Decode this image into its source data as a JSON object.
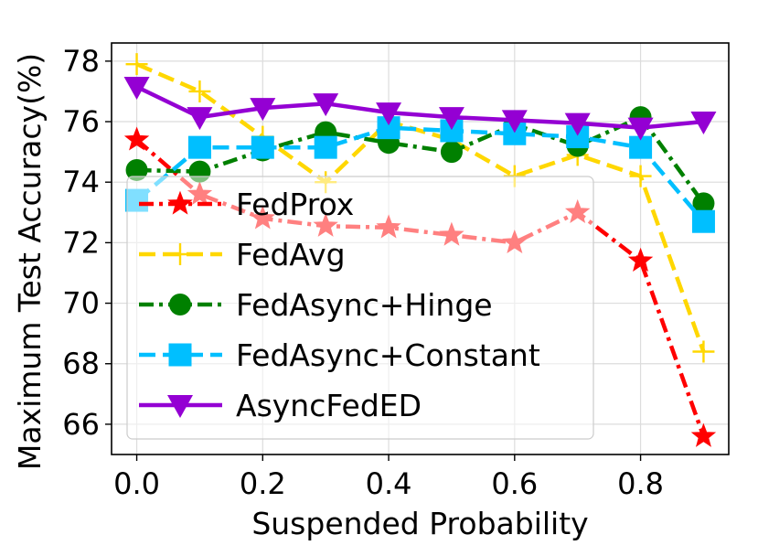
{
  "chart_data": {
    "type": "line",
    "title": "",
    "xlabel": "Suspended Probability",
    "ylabel": "Maximum Test Accuracy(%)",
    "xlim": [
      -0.04,
      0.94
    ],
    "ylim": [
      65.0,
      78.6
    ],
    "xticks": [
      "0.0",
      "0.2",
      "0.4",
      "0.6",
      "0.8"
    ],
    "xtick_values": [
      0.0,
      0.2,
      0.4,
      0.6,
      0.8
    ],
    "yticks": [
      "66",
      "68",
      "70",
      "72",
      "74",
      "76",
      "78"
    ],
    "ytick_values": [
      66,
      68,
      70,
      72,
      74,
      76,
      78
    ],
    "grid": true,
    "legend_position": "lower-left",
    "x": [
      0.0,
      0.1,
      0.2,
      0.3,
      0.4,
      0.5,
      0.6,
      0.7,
      0.8,
      0.9
    ],
    "series": [
      {
        "name": "FedProx",
        "color": "#ff0000",
        "linestyle": "dashdot",
        "marker": "star",
        "values": [
          75.4,
          73.6,
          72.8,
          72.55,
          72.5,
          72.25,
          72.0,
          73.0,
          71.4,
          65.6
        ]
      },
      {
        "name": "FedAvg",
        "color": "#ffd700",
        "linestyle": "dashed",
        "marker": "plus",
        "values": [
          77.9,
          77.0,
          75.5,
          74.0,
          76.0,
          75.4,
          74.2,
          74.9,
          74.2,
          68.4
        ]
      },
      {
        "name": "FedAsync+Hinge",
        "color": "#008000",
        "linestyle": "dashdot",
        "marker": "circle",
        "values": [
          74.4,
          74.35,
          75.05,
          75.65,
          75.3,
          75.0,
          75.9,
          75.2,
          76.15,
          73.3
        ]
      },
      {
        "name": "FedAsync+Constant",
        "color": "#00bfff",
        "linestyle": "dashed",
        "marker": "square",
        "values": [
          73.4,
          75.15,
          75.15,
          75.15,
          75.8,
          75.7,
          75.6,
          75.5,
          75.15,
          72.7
        ]
      },
      {
        "name": "AsyncFedED",
        "color": "#9400d3",
        "linestyle": "solid",
        "marker": "triangle-down",
        "values": [
          77.15,
          76.15,
          76.45,
          76.6,
          76.3,
          76.15,
          76.05,
          75.95,
          75.8,
          76.0
        ]
      }
    ]
  }
}
